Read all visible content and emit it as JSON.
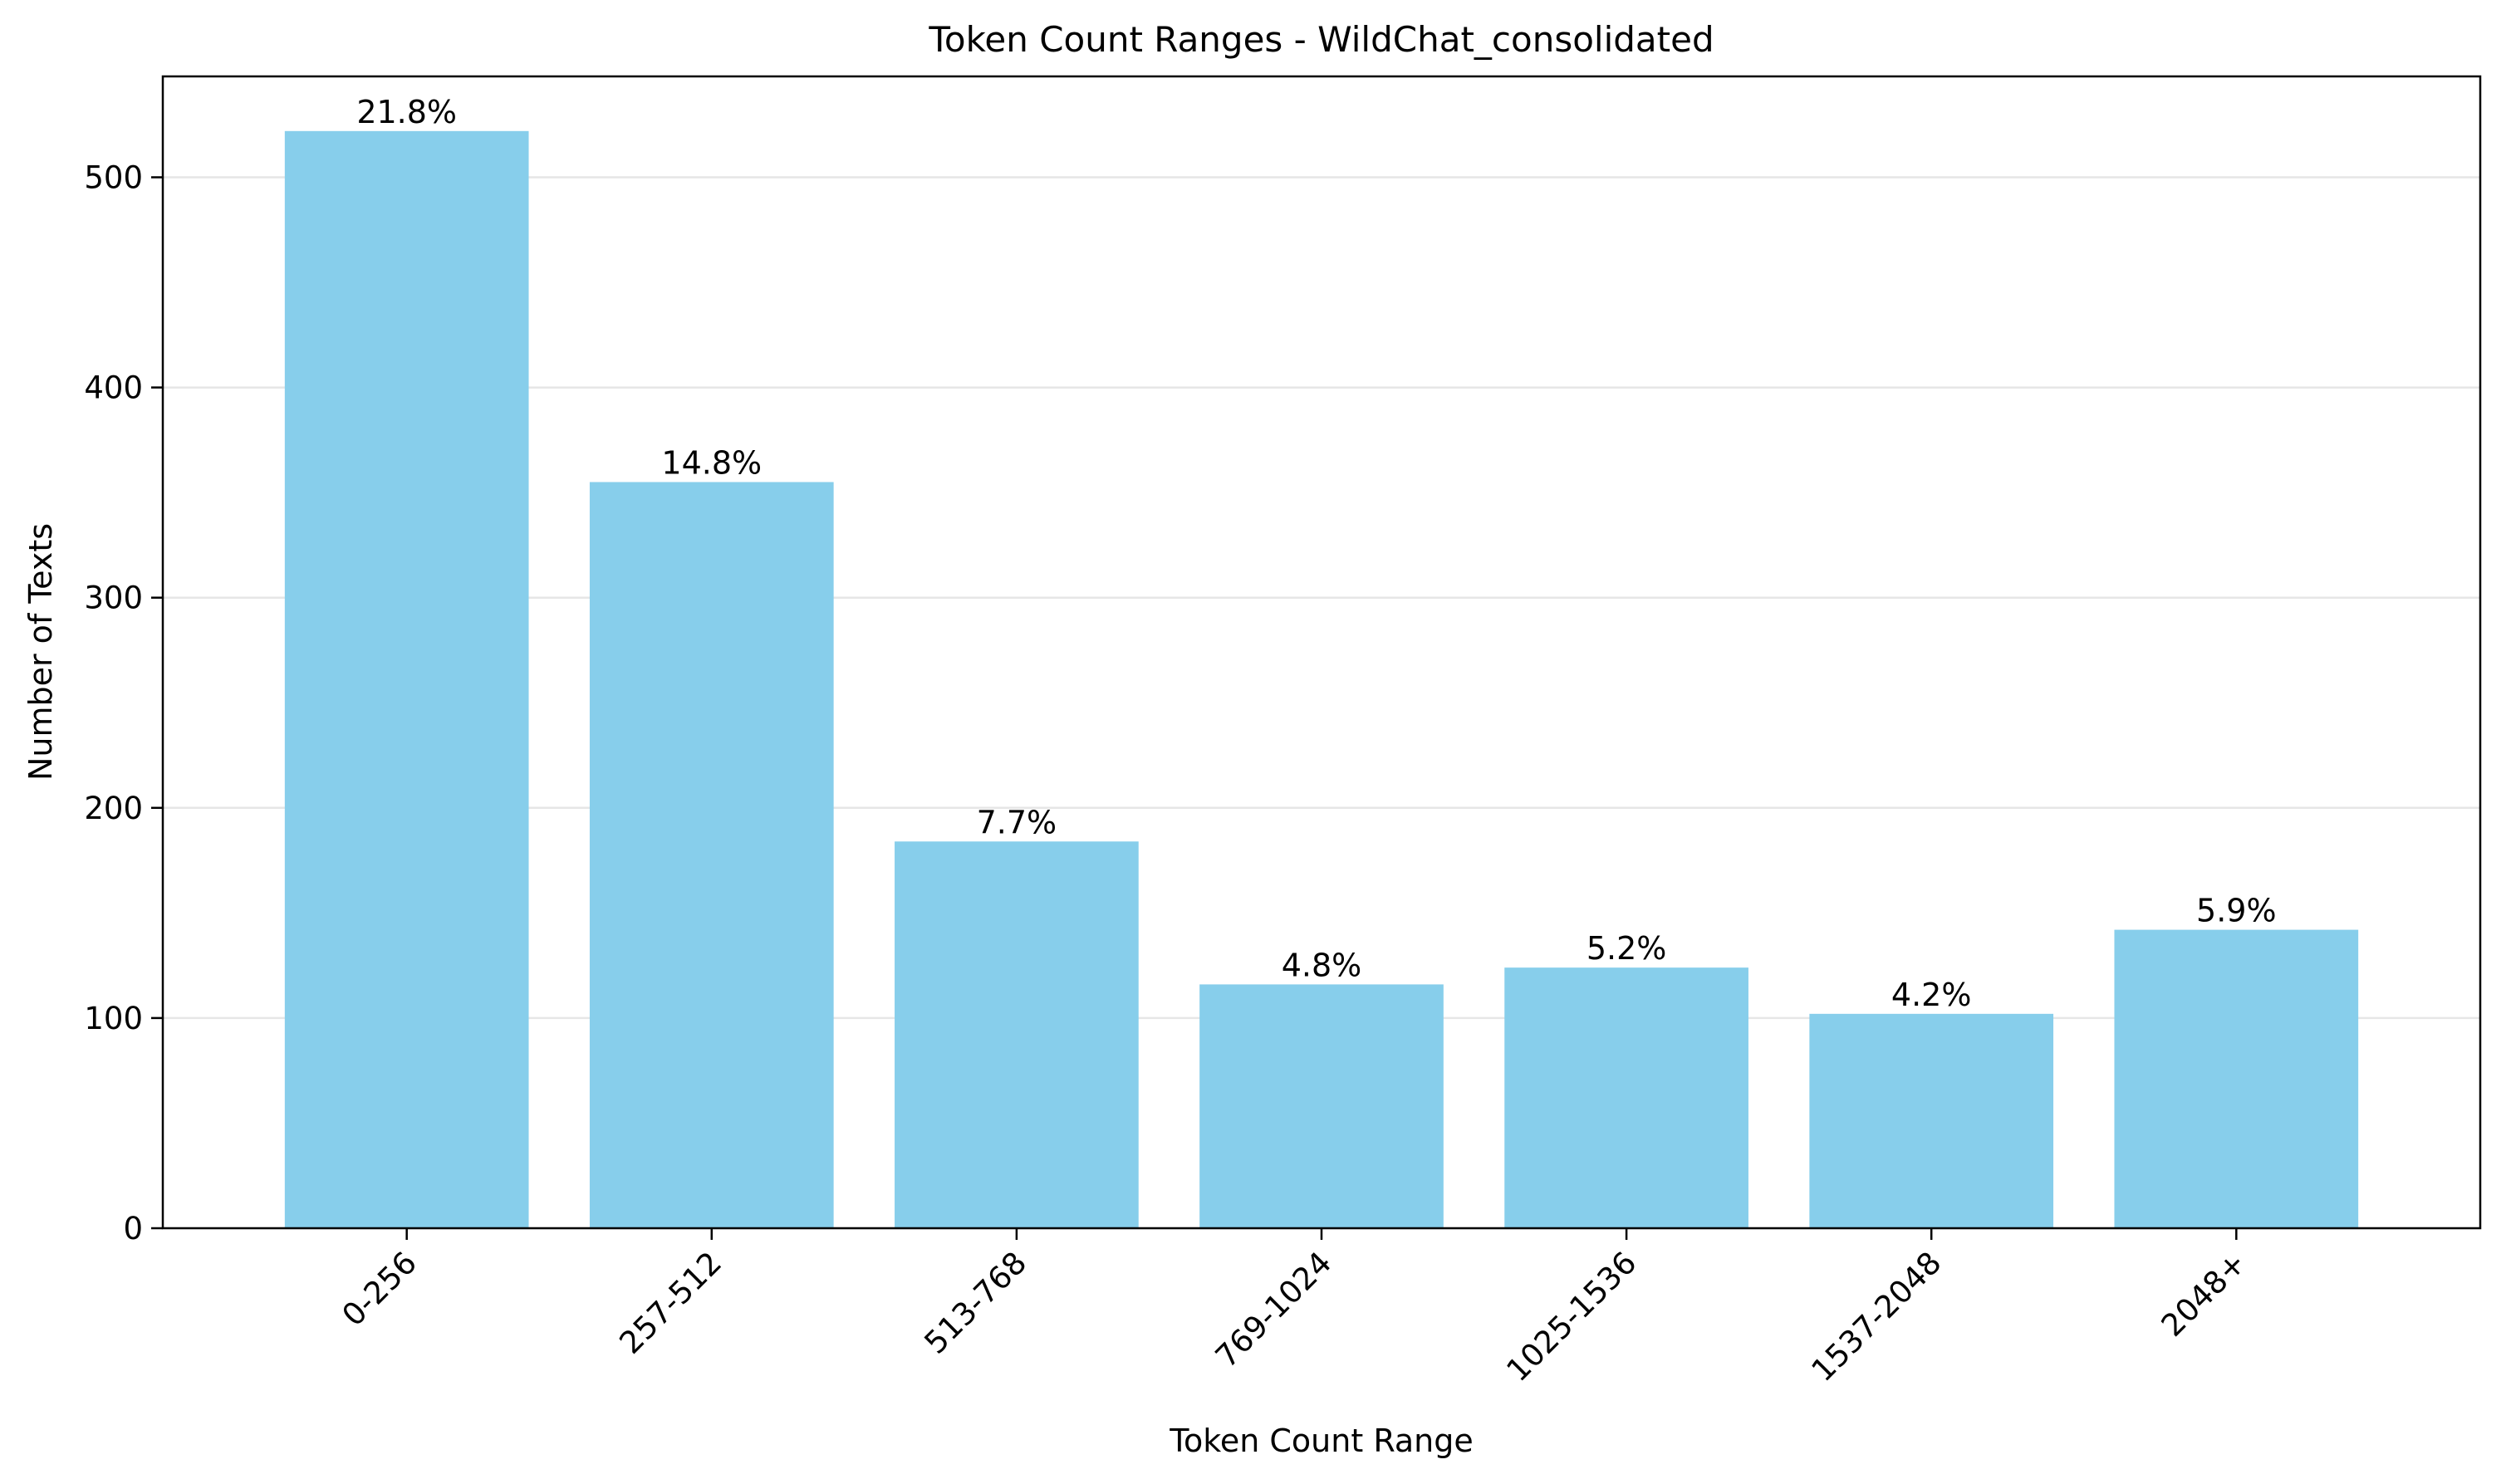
{
  "chart_data": {
    "type": "bar",
    "title": "Token Count Ranges - WildChat_consolidated",
    "xlabel": "Token Count Range",
    "ylabel": "Number of Texts",
    "categories": [
      "0-256",
      "257-512",
      "513-768",
      "769-1024",
      "1025-1536",
      "1537-2048",
      "2048+"
    ],
    "values": [
      522,
      355,
      184,
      116,
      124,
      102,
      142
    ],
    "value_labels": [
      "21.8%",
      "14.8%",
      "7.7%",
      "4.8%",
      "5.2%",
      "4.2%",
      "5.9%"
    ],
    "yticks": [
      0,
      100,
      200,
      300,
      400,
      500
    ],
    "ylim": [
      0,
      548
    ],
    "grid": "y",
    "bar_color": "#87ceeb",
    "grid_color": "#e6e6e6",
    "axis_color": "#000000"
  }
}
